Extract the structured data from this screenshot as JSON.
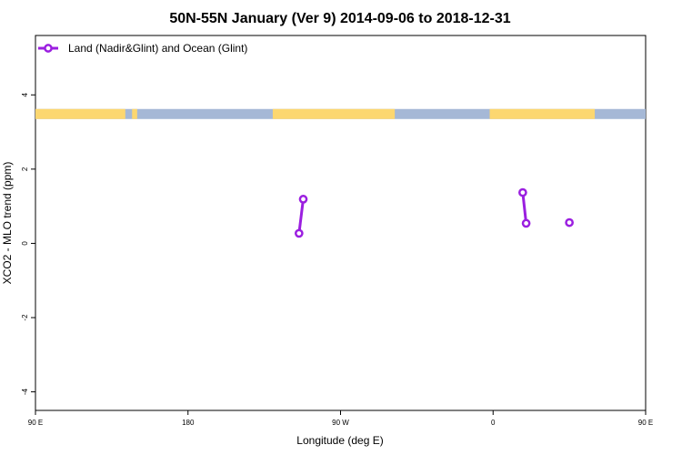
{
  "chart_data": {
    "type": "line",
    "title": "50N-55N January (Ver 9)   2014-09-06 to 2018-12-31",
    "xlabel": "Longitude (deg E)",
    "ylabel": "XCO2 - MLO trend (ppm)",
    "xlim": [
      90,
      450
    ],
    "ylim": [
      -4.5,
      5.6
    ],
    "x_ticks": [
      {
        "value": 90,
        "label": "90 E"
      },
      {
        "value": 180,
        "label": "180"
      },
      {
        "value": 270,
        "label": "90 W"
      },
      {
        "value": 360,
        "label": "0"
      },
      {
        "value": 450,
        "label": "90 E"
      },
      {
        "value": 540,
        "label": "180"
      }
    ],
    "y_ticks": [
      {
        "value": -4,
        "label": "-4"
      },
      {
        "value": -2,
        "label": "-2"
      },
      {
        "value": 0,
        "label": "0"
      },
      {
        "value": 2,
        "label": "2"
      },
      {
        "value": 4,
        "label": "4"
      }
    ],
    "legend": {
      "position": "top-left",
      "entries": [
        "Land (Nadir&Glint) and Ocean (Glint)"
      ]
    },
    "series_color": "#9b1fe0",
    "series": [
      {
        "segments": [
          [
            {
              "x": 245.5,
              "y": 0.27
            },
            {
              "x": 248.0,
              "y": 1.19
            }
          ],
          [
            {
              "x": 377.5,
              "y": 1.37
            },
            {
              "x": 379.5,
              "y": 0.54
            }
          ],
          [
            {
              "x": 405.0,
              "y": 0.56
            }
          ]
        ]
      }
    ],
    "land_ocean_strip": {
      "y_range": [
        3.35,
        3.62
      ],
      "land_color": "#fcd770",
      "ocean_color": "#a5b8d6",
      "land_longitudes": [
        [
          90,
          143
        ],
        [
          147,
          150
        ],
        [
          230,
          302
        ],
        [
          358,
          420
        ]
      ],
      "grid": false
    }
  }
}
